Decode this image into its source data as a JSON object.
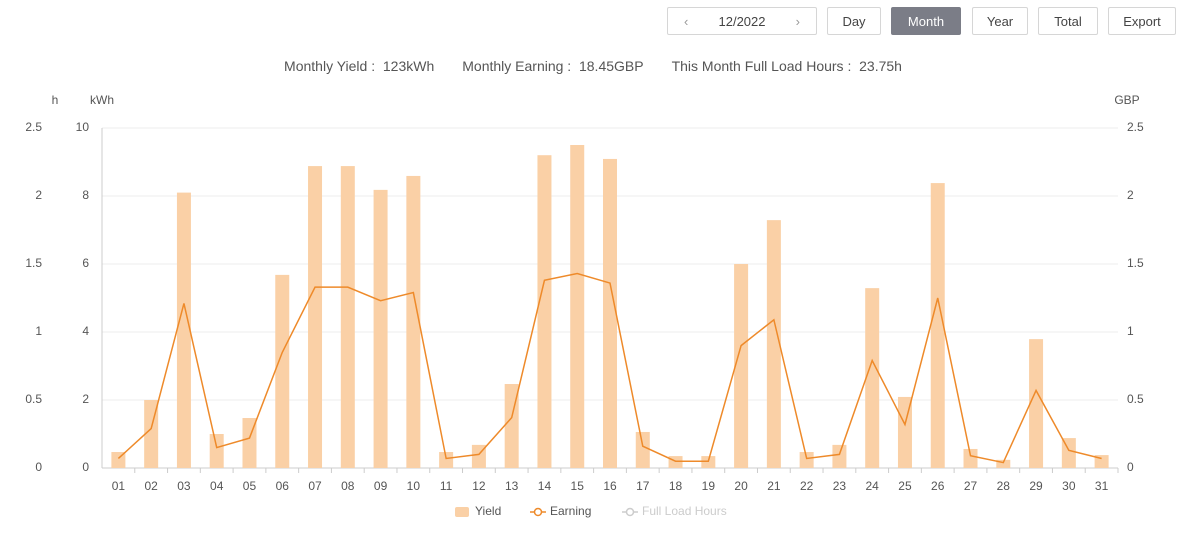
{
  "toolbar": {
    "date": "12/2022",
    "buttons": [
      "Day",
      "Month",
      "Year",
      "Total",
      "Export"
    ],
    "active": "Month"
  },
  "stats": [
    {
      "label": "Monthly Yield :",
      "value": "123kWh"
    },
    {
      "label": "Monthly Earning :",
      "value": "18.45GBP"
    },
    {
      "label": "This Month Full Load Hours :",
      "value": "23.75h"
    }
  ],
  "chart_data": {
    "type": "bar",
    "categories": [
      "01",
      "02",
      "03",
      "04",
      "05",
      "06",
      "07",
      "08",
      "09",
      "10",
      "11",
      "12",
      "13",
      "14",
      "15",
      "16",
      "17",
      "18",
      "19",
      "20",
      "21",
      "22",
      "23",
      "24",
      "25",
      "26",
      "27",
      "28",
      "29",
      "30",
      "31"
    ],
    "series": [
      {
        "name": "Yield",
        "type": "bar",
        "color": "#fad0a6",
        "values": [
          0.47,
          2.0,
          8.1,
          1.0,
          1.47,
          5.68,
          8.88,
          8.88,
          8.18,
          8.59,
          0.47,
          0.68,
          2.47,
          9.2,
          9.5,
          9.09,
          1.06,
          0.35,
          0.35,
          6.0,
          7.29,
          0.47,
          0.68,
          5.29,
          2.09,
          8.38,
          0.56,
          0.24,
          3.79,
          0.88,
          0.38
        ]
      },
      {
        "name": "Earning",
        "type": "line",
        "axis": "y2",
        "color": "#ee8a2a",
        "values": [
          0.07,
          0.29,
          1.21,
          0.15,
          0.22,
          0.85,
          1.33,
          1.33,
          1.23,
          1.29,
          0.07,
          0.1,
          0.37,
          1.38,
          1.43,
          1.36,
          0.16,
          0.05,
          0.05,
          0.9,
          1.09,
          0.07,
          0.1,
          0.79,
          0.32,
          1.25,
          0.09,
          0.04,
          0.57,
          0.13,
          0.07
        ]
      },
      {
        "name": "Full Load Hours",
        "type": "line",
        "axis": "h",
        "color": "#cccccc",
        "visible": false
      }
    ],
    "ylabel": "kWh",
    "ylim": [
      0,
      10
    ],
    "yticks": [
      0,
      2,
      4,
      6,
      8,
      10
    ],
    "y2label": "GBP",
    "y2lim": [
      0,
      2.5
    ],
    "y2ticks": [
      0,
      0.5,
      1,
      1.5,
      2,
      2.5
    ],
    "hlabel": "h",
    "hlim": [
      0,
      2.5
    ],
    "hticks": [
      0,
      0.5,
      1,
      1.5,
      2,
      2.5
    ],
    "grid": true,
    "legend": "bottom"
  }
}
